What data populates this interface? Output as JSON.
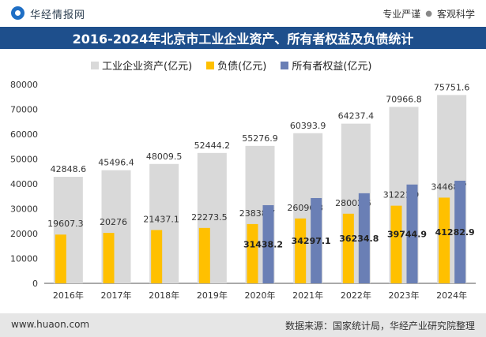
{
  "header": {
    "brand": "华经情报网",
    "tagline_1": "专业严谨",
    "separator": "●",
    "tagline_2": "客观科学"
  },
  "colors": {
    "title_bg": "#1e4f8c",
    "assets": "#d9d9d9",
    "liabilities": "#ffc000",
    "equity": "#6a7fb5",
    "footer_bg": "#e6e6e6"
  },
  "footer": {
    "url": "www.huaon.com",
    "source": "数据来源：国家统计局，华经产业研究院整理"
  },
  "chart_data": {
    "type": "bar",
    "title": "2016-2024年北京市工业企业资产、所有者权益及负债统计",
    "categories": [
      "2016年",
      "2017年",
      "2018年",
      "2019年",
      "2020年",
      "2021年",
      "2022年",
      "2023年",
      "2024年"
    ],
    "series": [
      {
        "name": "工业企业资产(亿元)",
        "color": "#d9d9d9",
        "values": [
          42848.6,
          45496.4,
          48009.5,
          52444.2,
          55276.9,
          60393.9,
          64237.4,
          70966.8,
          75751.6
        ],
        "labels": [
          "42848.6",
          "45496.4",
          "48009.5",
          "52444.2",
          "55276.9",
          "60393.9",
          "64237.4",
          "70966.8",
          "75751.6"
        ]
      },
      {
        "name": "负债(亿元)",
        "color": "#ffc000",
        "values": [
          19607.3,
          20276,
          21437.1,
          22273.5,
          23838.7,
          26096.8,
          28002.6,
          31221.9,
          34468.7
        ],
        "labels": [
          "19607.3",
          "20276",
          "21437.1",
          "22273.5",
          "23838.7",
          "26096.8",
          "28002.6",
          "31221.9",
          "34468.7"
        ]
      },
      {
        "name": "所有者权益(亿元)",
        "color": "#6a7fb5",
        "values": [
          null,
          null,
          null,
          null,
          31438.2,
          34297.1,
          36234.8,
          39744.9,
          41282.9
        ],
        "labels": [
          "",
          "",
          "",
          "",
          "31438.2",
          "34297.1",
          "36234.8",
          "39744.9",
          "41282.9"
        ]
      }
    ],
    "yticks": [
      "0",
      "10000",
      "20000",
      "30000",
      "40000",
      "50000",
      "60000",
      "70000",
      "80000"
    ],
    "ylim": [
      0,
      80000
    ],
    "grid": false,
    "legend": "top"
  }
}
